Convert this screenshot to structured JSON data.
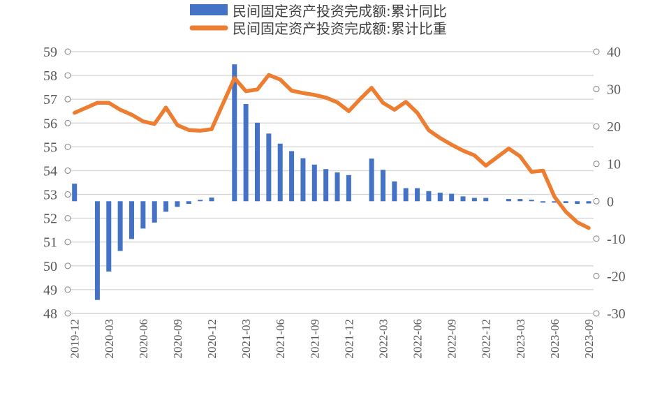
{
  "chart_data": {
    "type": "bar+line",
    "legend_position": "top",
    "grid": true,
    "colors": {
      "bar": "#4472C4",
      "line": "#ED7D31",
      "grid": "#D9D9D9",
      "text": "#595959"
    },
    "x": [
      "2019-12",
      "2020-01",
      "2020-02",
      "2020-03",
      "2020-04",
      "2020-05",
      "2020-06",
      "2020-07",
      "2020-08",
      "2020-09",
      "2020-10",
      "2020-11",
      "2020-12",
      "2021-01",
      "2021-02",
      "2021-03",
      "2021-04",
      "2021-05",
      "2021-06",
      "2021-07",
      "2021-08",
      "2021-09",
      "2021-10",
      "2021-11",
      "2021-12",
      "2022-01",
      "2022-02",
      "2022-03",
      "2022-04",
      "2022-05",
      "2022-06",
      "2022-07",
      "2022-08",
      "2022-09",
      "2022-10",
      "2022-11",
      "2022-12",
      "2023-01",
      "2023-02",
      "2023-03",
      "2023-04",
      "2023-05",
      "2023-06",
      "2023-07",
      "2023-08",
      "2023-09"
    ],
    "x_tick_labels": [
      "2019-12",
      "2020-03",
      "2020-06",
      "2020-09",
      "2020-12",
      "2021-03",
      "2021-06",
      "2021-09",
      "2021-12",
      "2022-03",
      "2022-06",
      "2022-09",
      "2022-12",
      "2023-03",
      "2023-06",
      "2023-09"
    ],
    "left_axis": {
      "ylim": [
        48,
        59
      ],
      "ticks": [
        "48",
        "49",
        "50",
        "51",
        "52",
        "53",
        "54",
        "55",
        "56",
        "57",
        "58",
        "59"
      ]
    },
    "right_axis": {
      "ylim": [
        -30,
        40
      ],
      "ticks": [
        "-30",
        "-20",
        "-10",
        "0",
        "10",
        "20",
        "30",
        "40"
      ]
    },
    "series": [
      {
        "name": "民间固定资产投资完成额:累计同比",
        "type": "bar",
        "axis": "right",
        "values": [
          4.7,
          null,
          -26.4,
          -18.8,
          -13.3,
          -10.1,
          -7.3,
          -5.7,
          -2.8,
          -1.5,
          -0.7,
          0.2,
          1.0,
          null,
          36.6,
          26.0,
          21.0,
          18.1,
          15.4,
          13.4,
          11.5,
          9.8,
          8.6,
          7.7,
          7.0,
          null,
          11.4,
          8.4,
          5.3,
          3.5,
          3.5,
          2.7,
          2.3,
          2.0,
          1.3,
          0.9,
          0.9,
          null,
          0.6,
          0.6,
          0.4,
          -0.1,
          -0.2,
          -0.5,
          -0.7,
          -0.6
        ]
      },
      {
        "name": "民间固定资产投资完成额:累计比重",
        "type": "line",
        "axis": "left",
        "values": [
          56.43,
          56.64,
          56.85,
          56.85,
          56.56,
          56.35,
          56.07,
          55.96,
          56.65,
          55.91,
          55.71,
          55.68,
          55.74,
          56.82,
          57.89,
          57.34,
          57.41,
          58.02,
          57.83,
          57.36,
          57.26,
          57.18,
          57.07,
          56.87,
          56.5,
          57.01,
          57.48,
          56.85,
          56.56,
          56.89,
          56.43,
          55.7,
          55.37,
          55.09,
          54.84,
          54.64,
          54.21,
          54.57,
          54.93,
          54.6,
          53.95,
          54.0,
          52.91,
          52.27,
          51.83,
          51.59
        ]
      }
    ]
  },
  "legend": {
    "bar_label": "民间固定资产投资完成额:累计同比",
    "line_label": "民间固定资产投资完成额:累计比重"
  }
}
